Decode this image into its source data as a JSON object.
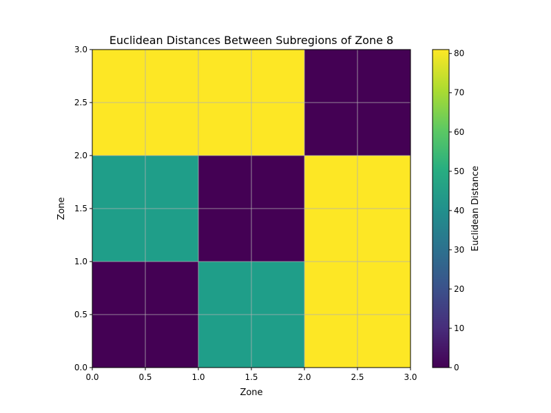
{
  "chart_data": {
    "type": "heatmap",
    "title": "Euclidean Distances Between Subregions of Zone 8",
    "xlabel": "Zone",
    "ylabel": "Zone",
    "xlim": [
      0,
      3
    ],
    "ylim": [
      0,
      3
    ],
    "x_ticks": [
      "0.0",
      "0.5",
      "1.0",
      "1.5",
      "2.0",
      "2.5",
      "3.0"
    ],
    "y_ticks": [
      "0.0",
      "0.5",
      "1.0",
      "1.5",
      "2.0",
      "2.5",
      "3.0"
    ],
    "grid": true,
    "colormap": "viridis",
    "colorbar": {
      "label": "Euclidean Distance",
      "range": [
        0,
        81
      ],
      "ticks": [
        "0",
        "10",
        "20",
        "30",
        "40",
        "50",
        "60",
        "70",
        "80"
      ]
    },
    "rows_bottom_to_top": [
      [
        0,
        45,
        81
      ],
      [
        45,
        0,
        81
      ],
      [
        81,
        81,
        0
      ]
    ]
  }
}
